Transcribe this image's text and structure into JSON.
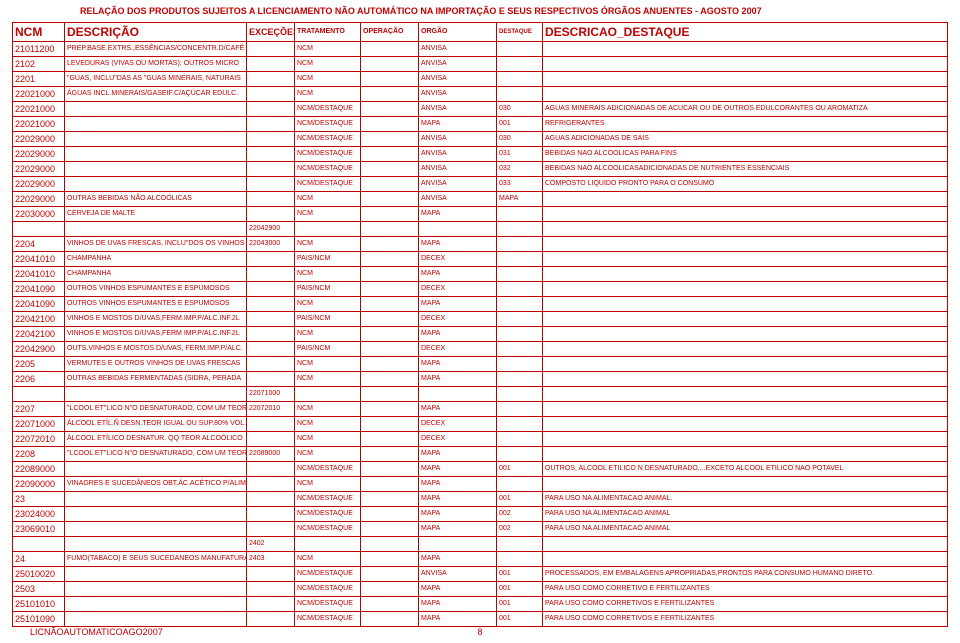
{
  "title": "RELAÇÃO DOS PRODUTOS SUJEITOS A LICENCIAMENTO NÃO AUTOMÁTICO NA IMPORTAÇÃO E SEUS RESPECTIVOS ÓRGÃOS ANUENTES - AGOSTO 2007",
  "footer": "LICNÃOAUTOMATICOAGO2007",
  "page_number": "8",
  "headers": {
    "ncm": "NCM",
    "desc": "DESCRIÇÃO",
    "exc": "EXCEÇÕES",
    "trat": "TRATAMENTO",
    "oper": "OPERAÇÃO",
    "orgao": "ORGÃO",
    "dest": "DESTAQUE",
    "dd": "DESCRICAO_DESTAQUE"
  },
  "rows": [
    {
      "ncm": "21011200",
      "desc": "PREP.BASE EXTRS.,ESSÊNCIAS/CONCENTR.D/CAFÉ",
      "exc": "",
      "trat": "NCM",
      "oper": "",
      "orgao": "ANVISA",
      "dest": "",
      "dd": ""
    },
    {
      "ncm": "2102",
      "desc": "LEVEDURAS (VIVAS OU MORTAS); OUTROS MICRO",
      "exc": "",
      "trat": "NCM",
      "oper": "",
      "orgao": "ANVISA",
      "dest": "",
      "dd": ""
    },
    {
      "ncm": "2201",
      "desc": "\"GUAS, INCLU\"DAS AS \"GUAS MINERAIS, NATURAIS",
      "exc": "",
      "trat": "NCM",
      "oper": "",
      "orgao": "ANVISA",
      "dest": "",
      "dd": ""
    },
    {
      "ncm": "22021000",
      "desc": "ÁGUAS INCL.MINERAIS/GASEIF.C/AÇÚCAR EDULC.",
      "exc": "",
      "trat": "NCM",
      "oper": "",
      "orgao": "ANVISA",
      "dest": "",
      "dd": ""
    },
    {
      "ncm": "22021000",
      "desc": "",
      "exc": "",
      "trat": "NCM/DESTAQUE",
      "oper": "",
      "orgao": "ANVISA",
      "dest": "030",
      "dd": "AGUAS MINERAIS ADICIONADAS DE ACUCAR OU DE OUTROS EDULCORANTES OU AROMATIZA"
    },
    {
      "ncm": "22021000",
      "desc": "",
      "exc": "",
      "trat": "NCM/DESTAQUE",
      "oper": "",
      "orgao": "MAPA",
      "dest": "001",
      "dd": "REFRIGERANTES"
    },
    {
      "ncm": "22029000",
      "desc": "",
      "exc": "",
      "trat": "NCM/DESTAQUE",
      "oper": "",
      "orgao": "ANVISA",
      "dest": "030",
      "dd": "AGUAS ADICIONADAS DE SAIS"
    },
    {
      "ncm": "22029000",
      "desc": "",
      "exc": "",
      "trat": "NCM/DESTAQUE",
      "oper": "",
      "orgao": "ANVISA",
      "dest": "031",
      "dd": "BEBIDAS NAO ALCOOLICAS PARA FINS"
    },
    {
      "ncm": "22029000",
      "desc": "",
      "exc": "",
      "trat": "NCM/DESTAQUE",
      "oper": "",
      "orgao": "ANVISA",
      "dest": "032",
      "dd": "BEBIDAS NAO ALCOOLICASADICIONADAS DE NUTRIENTES ESSENCIAIS"
    },
    {
      "ncm": "22029000",
      "desc": "",
      "exc": "",
      "trat": "NCM/DESTAQUE",
      "oper": "",
      "orgao": "ANVISA",
      "dest": "033",
      "dd": "COMPOSTO LIQUIDO PRONTO PARA O CONSUMO"
    },
    {
      "ncm": "22029000",
      "desc": "OUTRAS BEBIDAS NÃO ALCOÓLICAS",
      "exc": "",
      "trat": "NCM",
      "oper": "",
      "orgao": "ANVISA",
      "dest": "MAPA",
      "dd": ""
    },
    {
      "ncm": "22030000",
      "desc": "CERVEJA DE MALTE",
      "exc": "",
      "trat": "NCM",
      "oper": "",
      "orgao": "MAPA",
      "dest": "",
      "dd": ""
    },
    {
      "ncm": "",
      "desc": "",
      "exc": "22042900",
      "trat": "",
      "oper": "",
      "orgao": "",
      "dest": "",
      "dd": ""
    },
    {
      "ncm": "2204",
      "desc": "VINHOS DE UVAS FRESCAS, INCLU\"DOS OS VINHOS EN",
      "exc": "22043000",
      "trat": "NCM",
      "oper": "",
      "orgao": "MAPA",
      "dest": "",
      "dd": ""
    },
    {
      "ncm": "22041010",
      "desc": "CHAMPANHA",
      "exc": "",
      "trat": "PAIS/NCM",
      "oper": "",
      "orgao": "DECEX",
      "dest": "",
      "dd": ""
    },
    {
      "ncm": "22041010",
      "desc": "CHAMPANHA",
      "exc": "",
      "trat": "NCM",
      "oper": "",
      "orgao": "MAPA",
      "dest": "",
      "dd": ""
    },
    {
      "ncm": "22041090",
      "desc": "OUTROS VINHOS ESPUMANTES E ESPUMOSOS",
      "exc": "",
      "trat": "PAIS/NCM",
      "oper": "",
      "orgao": "DECEX",
      "dest": "",
      "dd": ""
    },
    {
      "ncm": "22041090",
      "desc": "OUTROS VINHOS ESPUMANTES E ESPUMOSOS",
      "exc": "",
      "trat": "NCM",
      "oper": "",
      "orgao": "MAPA",
      "dest": "",
      "dd": ""
    },
    {
      "ncm": "22042100",
      "desc": "VINHOS E MOSTOS D/UVAS,FERM.IMP.P/ALC.INF.2L",
      "exc": "",
      "trat": "PAIS/NCM",
      "oper": "",
      "orgao": "DECEX",
      "dest": "",
      "dd": ""
    },
    {
      "ncm": "22042100",
      "desc": "VINHOS E MOSTOS D/UVAS,FERM IMP.P/ALC.INF.2L",
      "exc": "",
      "trat": "NCM",
      "oper": "",
      "orgao": "MAPA",
      "dest": "",
      "dd": ""
    },
    {
      "ncm": "22042900",
      "desc": "OUTS.VINHOS E MOSTOS D/UVAS, FERM.IMP.P/ALC.",
      "exc": "",
      "trat": "PAIS/NCM",
      "oper": "",
      "orgao": "DECEX",
      "dest": "",
      "dd": ""
    },
    {
      "ncm": "2205",
      "desc": "VERMUTES E OUTROS VINHOS DE UVAS FRESCAS",
      "exc": "",
      "trat": "NCM",
      "oper": "",
      "orgao": "MAPA",
      "dest": "",
      "dd": ""
    },
    {
      "ncm": "2206",
      "desc": "OUTRAS BEBIDAS FERMENTADAS (SIDRA, PERADA",
      "exc": "",
      "trat": "NCM",
      "oper": "",
      "orgao": "MAPA",
      "dest": "",
      "dd": ""
    },
    {
      "ncm": "",
      "desc": "",
      "exc": "22071000",
      "trat": "",
      "oper": "",
      "orgao": "",
      "dest": "",
      "dd": ""
    },
    {
      "ncm": "2207",
      "desc": "\"LCOOL ET\"LICO N\"O DESNATURADO, COM UM TEOR A",
      "exc": "22072010",
      "trat": "NCM",
      "oper": "",
      "orgao": "MAPA",
      "dest": "",
      "dd": ""
    },
    {
      "ncm": "22071000",
      "desc": "ÁLCOOL ETÍL.Ñ DESN.TEOR IGUAL OU SUP.80% VOL.",
      "exc": "",
      "trat": "NCM",
      "oper": "",
      "orgao": "DECEX",
      "dest": "",
      "dd": ""
    },
    {
      "ncm": "22072010",
      "desc": "ÁLCOOL ETÍLICO DESNATUR. QQ TEOR ALCOÓLICO",
      "exc": "",
      "trat": "NCM",
      "oper": "",
      "orgao": "DECEX",
      "dest": "",
      "dd": ""
    },
    {
      "ncm": "2208",
      "desc": "\"LCOOL ET\"LICO N\"O DESNATURADO, COM UM TEOR A",
      "exc": "22089000",
      "trat": "NCM",
      "oper": "",
      "orgao": "MAPA",
      "dest": "",
      "dd": ""
    },
    {
      "ncm": "22089000",
      "desc": "",
      "exc": "",
      "trat": "NCM/DESTAQUE",
      "oper": "",
      "orgao": "MAPA",
      "dest": "001",
      "dd": "OUTROS, ALCOOL ETILICO N DESNATURADO,...EXCETO ALCOOL ETILICO NAO POTAVEL"
    },
    {
      "ncm": "22090000",
      "desc": "VINAGRES E SUCEDÂNEOS OBT.ÁC.ACÉTICO P/ALIM.",
      "exc": "",
      "trat": "NCM",
      "oper": "",
      "orgao": "MAPA",
      "dest": "",
      "dd": ""
    },
    {
      "ncm": "23",
      "desc": "",
      "exc": "",
      "trat": "NCM/DESTAQUE",
      "oper": "",
      "orgao": "MAPA",
      "dest": "001",
      "dd": "PARA USO NA ALIMENTACAO ANIMAL."
    },
    {
      "ncm": "23024000",
      "desc": "",
      "exc": "",
      "trat": "NCM/DESTAQUE",
      "oper": "",
      "orgao": "MAPA",
      "dest": "002",
      "dd": "PARA USO NA ALIMENTACAO ANIMAL"
    },
    {
      "ncm": "23069010",
      "desc": "",
      "exc": "",
      "trat": "NCM/DESTAQUE",
      "oper": "",
      "orgao": "MAPA",
      "dest": "002",
      "dd": "PARA USO NA ALIMENTACAO ANIMAL"
    },
    {
      "ncm": "",
      "desc": "",
      "exc": "2402",
      "trat": "",
      "oper": "",
      "orgao": "",
      "dest": "",
      "dd": ""
    },
    {
      "ncm": "24",
      "desc": "FUMO(TABACO) E SEUS SUCEDANEOS MANUFATURAD",
      "exc": "2403",
      "trat": "NCM",
      "oper": "",
      "orgao": "MAPA",
      "dest": "",
      "dd": ""
    },
    {
      "ncm": "25010020",
      "desc": "",
      "exc": "",
      "trat": "NCM/DESTAQUE",
      "oper": "",
      "orgao": "ANVISA",
      "dest": "001",
      "dd": "PROCESSADOS, EM EMBALAGENS APROPRIADAS,PRONTOS PARA CONSUMO HUMANO DIRETO."
    },
    {
      "ncm": "2503",
      "desc": "",
      "exc": "",
      "trat": "NCM/DESTAQUE",
      "oper": "",
      "orgao": "MAPA",
      "dest": "001",
      "dd": "PARA USO COMO CORRETIVO E FERTILIZANTES"
    },
    {
      "ncm": "25101010",
      "desc": "",
      "exc": "",
      "trat": "NCM/DESTAQUE",
      "oper": "",
      "orgao": "MAPA",
      "dest": "001",
      "dd": "PARA USO COMO CORRETIVOS E FERTILIZANTES"
    },
    {
      "ncm": "25101090",
      "desc": "",
      "exc": "",
      "trat": "NCM/DESTAQUE",
      "oper": "",
      "orgao": "MAPA",
      "dest": "001",
      "dd": "PARA USO COMO CORRETIVOS E FERTILIZANTES"
    }
  ]
}
